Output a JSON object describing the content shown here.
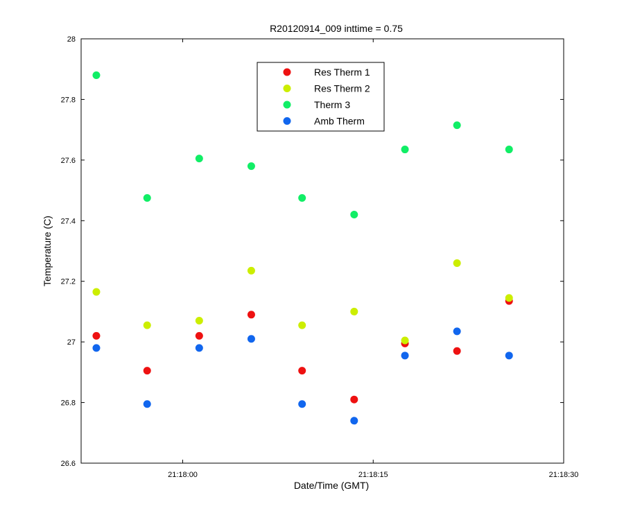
{
  "chart_data": {
    "type": "scatter",
    "title": "R20120914_009 inttime = 0.75",
    "xlabel": "Date/Time (GMT)",
    "ylabel": "Temperature (C)",
    "x_unit": "seconds after 21:17:50",
    "xlim": [
      0,
      38
    ],
    "ylim": [
      26.6,
      28
    ],
    "xticks": [
      {
        "value": 8,
        "label": "21:18:00"
      },
      {
        "value": 23,
        "label": "21:18:15"
      },
      {
        "value": 38,
        "label": "21:18:30"
      }
    ],
    "yticks": [
      {
        "value": 26.6,
        "label": "26.6"
      },
      {
        "value": 26.8,
        "label": "26.8"
      },
      {
        "value": 27,
        "label": "27"
      },
      {
        "value": 27.2,
        "label": "27.2"
      },
      {
        "value": 27.4,
        "label": "27.4"
      },
      {
        "value": 27.6,
        "label": "27.6"
      },
      {
        "value": 27.8,
        "label": "27.8"
      },
      {
        "value": 28,
        "label": "28"
      }
    ],
    "x": [
      1.2,
      5.2,
      9.3,
      13.4,
      17.4,
      21.5,
      25.5,
      29.6,
      33.7
    ],
    "series": [
      {
        "name": "Res Therm 1",
        "color": "#ee1111",
        "values": [
          27.02,
          26.905,
          27.02,
          27.09,
          26.905,
          26.81,
          26.995,
          26.97,
          27.135
        ]
      },
      {
        "name": "Res Therm 2",
        "color": "#ccee00",
        "values": [
          27.165,
          27.055,
          27.07,
          27.235,
          27.055,
          27.1,
          27.005,
          27.26,
          27.145
        ]
      },
      {
        "name": "Therm 3",
        "color": "#11ee66",
        "values": [
          27.88,
          27.475,
          27.605,
          27.58,
          27.475,
          27.42,
          27.635,
          27.715,
          27.635
        ]
      },
      {
        "name": "Amb Therm",
        "color": "#1166ee",
        "values": [
          26.98,
          26.795,
          26.98,
          27.01,
          26.795,
          26.74,
          26.955,
          27.035,
          26.955
        ]
      }
    ],
    "legend_position": "top-center",
    "grid": false
  }
}
